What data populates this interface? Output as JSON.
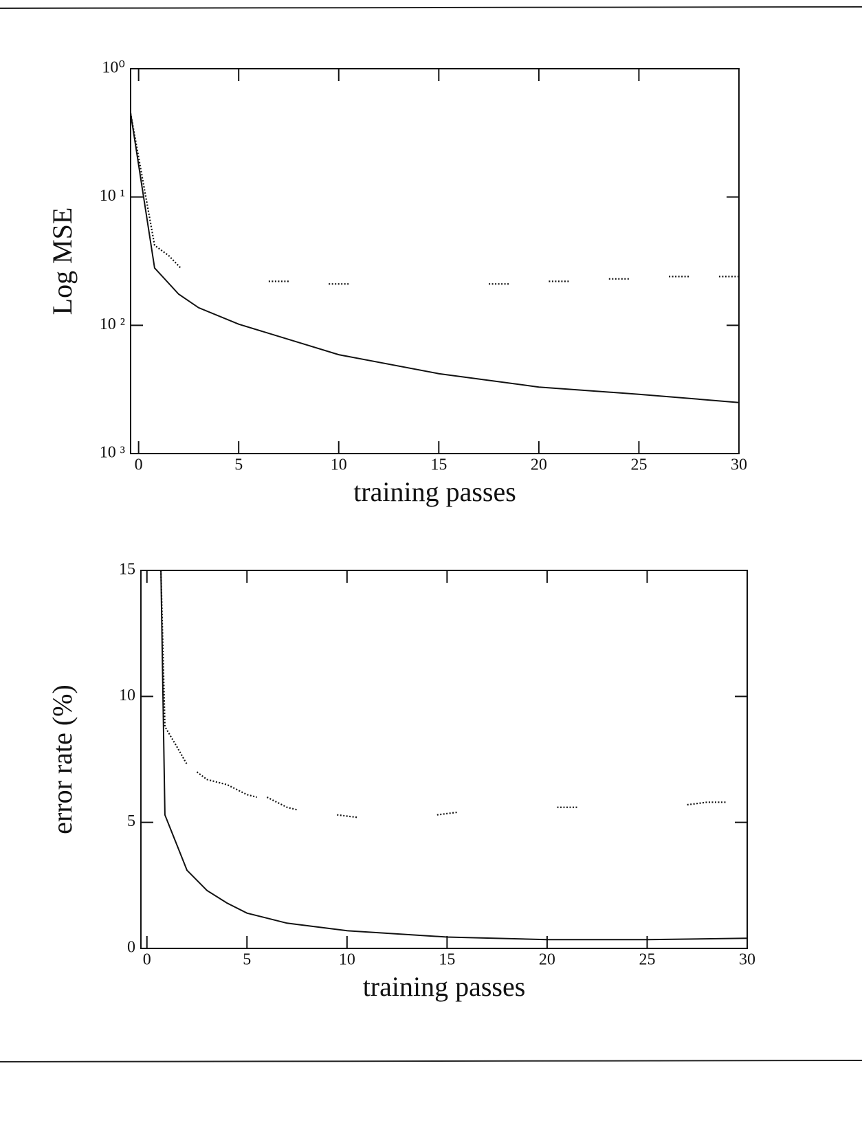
{
  "chart_data": [
    {
      "type": "line",
      "xlabel": "training passes",
      "ylabel": "Log MSE",
      "ylog": true,
      "grid": false,
      "xlim": [
        -0.4,
        30
      ],
      "xticks": [
        0,
        5,
        10,
        15,
        20,
        25,
        30
      ],
      "ylim": [
        0.001,
        1
      ],
      "yticks": [
        {
          "value": 1,
          "label": "10⁰"
        },
        {
          "value": 0.1,
          "label": "10 ¹"
        },
        {
          "value": 0.01,
          "label": "10 ²"
        },
        {
          "value": 0.001,
          "label": "10 ³"
        }
      ],
      "series": [
        {
          "color": "#111111",
          "style": "solid",
          "x": [
            -0.4,
            0.8,
            2,
            3,
            5,
            10,
            15,
            20,
            25,
            30
          ],
          "values": [
            0.45,
            0.028,
            0.0175,
            0.0137,
            0.0102,
            0.0059,
            0.0042,
            0.0033,
            0.0029,
            0.0025
          ]
        },
        {
          "color": "#111111",
          "style": "dotted",
          "x": [
            -0.4,
            0.8,
            1.5,
            2.1,
            null,
            6.5,
            7.5,
            null,
            9.5,
            10.5,
            null,
            17.5,
            18.5,
            null,
            20.5,
            21.5,
            null,
            23.5,
            24.5,
            null,
            26.5,
            27.5,
            null,
            29,
            30
          ],
          "values": [
            0.45,
            0.042,
            0.035,
            0.028,
            null,
            0.022,
            0.022,
            null,
            0.021,
            0.021,
            null,
            0.021,
            0.021,
            null,
            0.022,
            0.022,
            null,
            0.023,
            0.023,
            null,
            0.024,
            0.024,
            null,
            0.024,
            0.024
          ]
        }
      ]
    },
    {
      "type": "line",
      "xlabel": "training passes",
      "ylabel": "error rate (%)",
      "ylog": false,
      "grid": false,
      "xlim": [
        -0.3,
        30
      ],
      "xticks": [
        0,
        5,
        10,
        15,
        20,
        25,
        30
      ],
      "ylim": [
        0,
        15
      ],
      "yticks": [
        0,
        5,
        10,
        15
      ],
      "series": [
        {
          "color": "#111111",
          "style": "solid",
          "x": [
            0.7,
            0.9,
            2,
            3,
            4,
            5,
            7,
            10,
            15,
            20,
            25,
            30
          ],
          "values": [
            15,
            5.3,
            3.1,
            2.3,
            1.8,
            1.4,
            1.0,
            0.7,
            0.45,
            0.35,
            0.35,
            0.4
          ]
        },
        {
          "color": "#111111",
          "style": "dotted",
          "x": [
            0.7,
            0.9,
            1.5,
            2,
            null,
            2.5,
            3,
            4,
            5,
            5.5,
            null,
            6,
            7,
            7.5,
            null,
            9.5,
            10.5,
            null,
            14.5,
            15.5,
            null,
            20.5,
            21.5,
            null,
            27,
            28,
            29
          ],
          "values": [
            15,
            8.8,
            8.0,
            7.3,
            null,
            7.0,
            6.7,
            6.5,
            6.1,
            6.0,
            null,
            6.0,
            5.6,
            5.5,
            null,
            5.3,
            5.2,
            null,
            5.3,
            5.4,
            null,
            5.6,
            5.6,
            null,
            5.7,
            5.8,
            5.8
          ]
        }
      ]
    }
  ]
}
